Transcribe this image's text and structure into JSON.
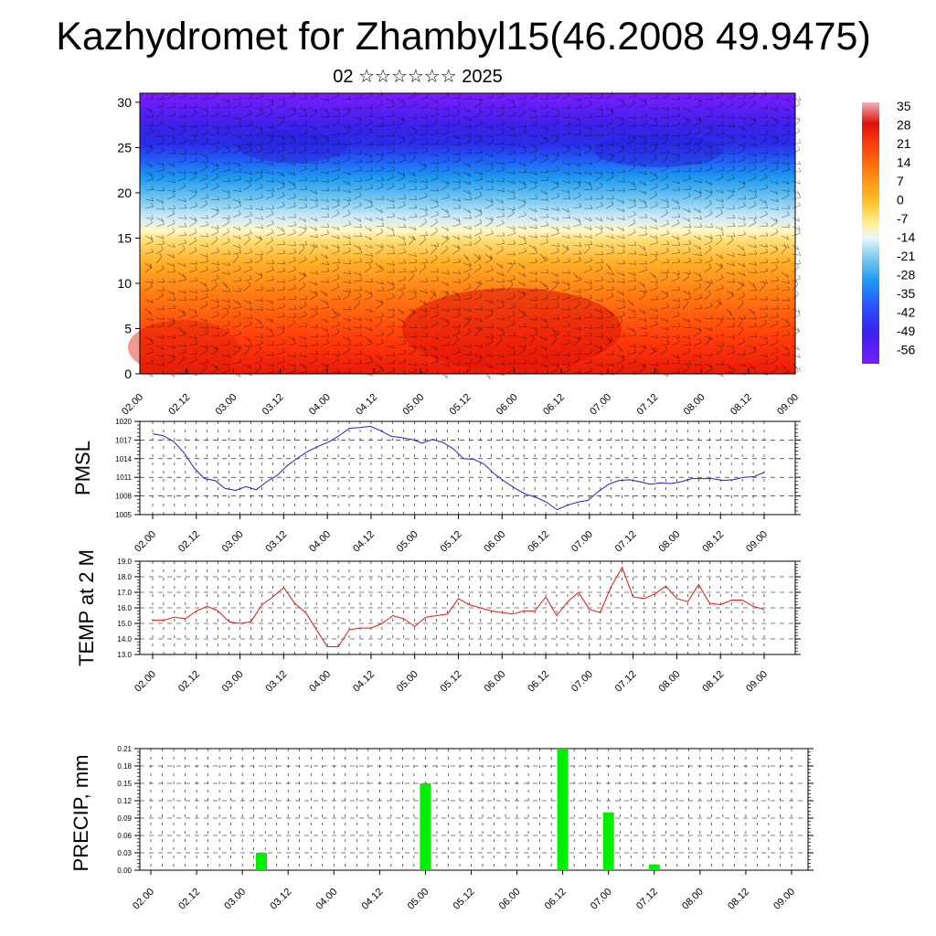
{
  "header": {
    "title": "Kazhydromet for Zhambyl15(46.2008 49.9475)",
    "subtitle": "02 ☆☆☆☆☆☆ 2025"
  },
  "chart_data": [
    {
      "type": "heatmap",
      "name": "vertical-section",
      "x_tick_labels": [
        "02.00",
        "02.12",
        "03.00",
        "03.12",
        "04.00",
        "04.12",
        "05.00",
        "05.12",
        "06.00",
        "06.12",
        "07.00",
        "07.12",
        "08.00",
        "08.12",
        "09.00"
      ],
      "y_ticks": [
        0,
        5,
        10,
        15,
        20,
        25,
        30
      ],
      "ylim": [
        0,
        31
      ],
      "colorbar": {
        "labels": [
          "35",
          "28",
          "21",
          "14",
          "7",
          "0",
          "-7",
          "-14",
          "-21",
          "-28",
          "-35",
          "-42",
          "-49",
          "-56"
        ],
        "colors": [
          "#7a1cff",
          "#3a22f0",
          "#2b3cff",
          "#2a6cff",
          "#1e9cf2",
          "#45b7ee",
          "#8fd3f0",
          "#d8f0ff",
          "#fff3a0",
          "#ffd43a",
          "#ffae1e",
          "#ff7f12",
          "#ff4a0d",
          "#e81a0a",
          "#f0a0a8"
        ]
      },
      "overlay": "wind barbs"
    },
    {
      "type": "line",
      "name": "pmsl",
      "ylabel": "PMSL",
      "y_ticks": [
        "1005",
        "1008",
        "1011",
        "1014",
        "1017",
        "1020"
      ],
      "ylim": [
        1005,
        1020
      ],
      "x_tick_labels": [
        "02.00",
        "02.12",
        "03.00",
        "03.12",
        "04.00",
        "04.12",
        "05.00",
        "05.12",
        "06.00",
        "06.12",
        "07.00",
        "07.12",
        "08.00",
        "08.12",
        "09.00"
      ],
      "series_color": "#2020c8",
      "values": [
        1018.0,
        1017.7,
        1016.8,
        1015.0,
        1012.5,
        1010.8,
        1010.5,
        1009.2,
        1008.9,
        1009.5,
        1009.0,
        1010.3,
        1011.3,
        1012.9,
        1014.1,
        1015.2,
        1016.0,
        1016.7,
        1017.7,
        1018.9,
        1019.0,
        1019.2,
        1018.5,
        1017.6,
        1017.4,
        1017.1,
        1016.5,
        1017.1,
        1016.6,
        1015.6,
        1014.0,
        1013.9,
        1013.1,
        1011.5,
        1010.3,
        1009.2,
        1008.3,
        1007.8,
        1007.0,
        1005.8,
        1006.5,
        1007.0,
        1007.3,
        1008.7,
        1009.9,
        1010.5,
        1010.6,
        1010.3,
        1009.9,
        1010.1,
        1010.0,
        1010.3,
        1010.8,
        1010.8,
        1010.8,
        1010.5,
        1010.6,
        1011.0,
        1011.1,
        1011.8
      ]
    },
    {
      "type": "line",
      "name": "temp-2m",
      "ylabel": "TEMP at 2 M",
      "y_ticks": [
        "13.0",
        "14.0",
        "15.0",
        "16.0",
        "17.0",
        "18.0",
        "19.0"
      ],
      "ylim": [
        13,
        19
      ],
      "x_tick_labels": [
        "02.00",
        "02.12",
        "03.00",
        "03.12",
        "04.00",
        "04.12",
        "05.00",
        "05.12",
        "06.00",
        "06.12",
        "07.00",
        "07.12",
        "08.00",
        "08.12",
        "09.00"
      ],
      "series_color": "#e01818",
      "values": [
        15.2,
        15.2,
        15.4,
        15.3,
        15.8,
        16.1,
        15.8,
        15.1,
        15.0,
        15.1,
        16.2,
        16.7,
        17.3,
        16.3,
        15.7,
        14.6,
        13.5,
        13.5,
        14.6,
        14.7,
        14.7,
        15.0,
        15.5,
        15.3,
        14.8,
        15.4,
        15.5,
        15.6,
        16.6,
        16.2,
        16.0,
        15.8,
        15.7,
        15.6,
        15.8,
        15.8,
        16.7,
        15.5,
        16.4,
        17.0,
        15.9,
        15.7,
        17.4,
        18.6,
        16.7,
        16.6,
        16.9,
        17.4,
        16.6,
        16.4,
        17.5,
        16.3,
        16.2,
        16.5,
        16.5,
        16.1,
        15.9
      ]
    },
    {
      "type": "bar",
      "name": "precip",
      "ylabel": "PRECIP, mm",
      "y_ticks": [
        "0.00",
        "0.03",
        "0.06",
        "0.09",
        "0.12",
        "0.15",
        "0.18",
        "0.21"
      ],
      "ylim": [
        0,
        0.21
      ],
      "x_tick_labels": [
        "02.00",
        "02.12",
        "03.00",
        "03.12",
        "04.00",
        "04.12",
        "05.00",
        "05.12",
        "06.00",
        "06.12",
        "07.00",
        "07.12",
        "08.00",
        "08.12",
        "09.00"
      ],
      "bar_color": "#00ee00",
      "bars": [
        {
          "x": 3.05,
          "value": 0.03
        },
        {
          "x": 5.0,
          "value": 0.15
        },
        {
          "x": 6.12,
          "value": 0.21
        },
        {
          "x": 6.36,
          "value": 0.01
        },
        {
          "x": 7.0,
          "value": 0.1
        }
      ]
    }
  ]
}
